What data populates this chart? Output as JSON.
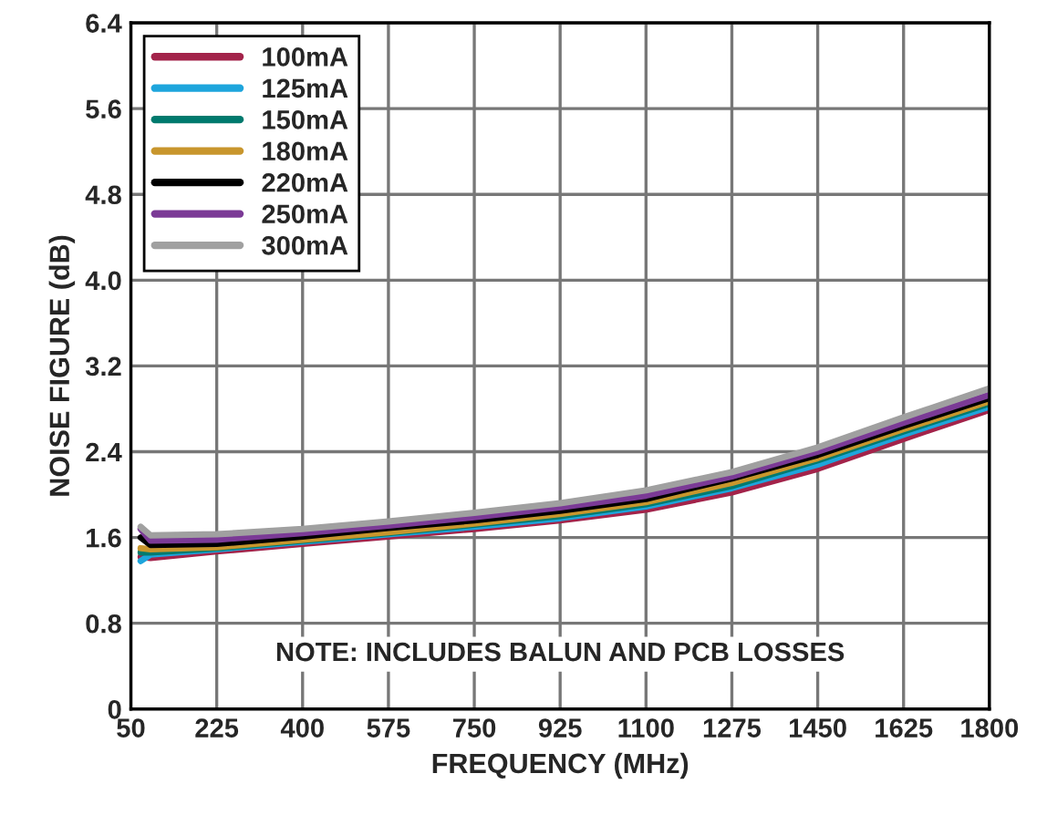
{
  "chart_data": {
    "type": "line",
    "xlabel": "FREQUENCY (MHz)",
    "ylabel": "NOISE FIGURE (dB)",
    "x": [
      70,
      90,
      225,
      400,
      575,
      750,
      925,
      1100,
      1275,
      1450,
      1625,
      1800
    ],
    "series": [
      {
        "name": "100mA",
        "color": "#a3234a",
        "values": [
          1.42,
          1.41,
          1.47,
          1.54,
          1.61,
          1.68,
          1.76,
          1.86,
          2.02,
          2.24,
          2.52,
          2.79
        ]
      },
      {
        "name": "125mA",
        "color": "#1ea5dc",
        "values": [
          1.38,
          1.44,
          1.49,
          1.56,
          1.63,
          1.7,
          1.78,
          1.89,
          2.06,
          2.28,
          2.56,
          2.82
        ]
      },
      {
        "name": "150mA",
        "color": "#007a6e",
        "values": [
          1.46,
          1.46,
          1.5,
          1.57,
          1.64,
          1.72,
          1.8,
          1.91,
          2.08,
          2.32,
          2.59,
          2.85
        ]
      },
      {
        "name": "180mA",
        "color": "#c8962d",
        "values": [
          1.5,
          1.49,
          1.51,
          1.58,
          1.65,
          1.73,
          1.82,
          1.93,
          2.11,
          2.34,
          2.61,
          2.87
        ]
      },
      {
        "name": "220mA",
        "color": "#000000",
        "values": [
          1.6,
          1.53,
          1.54,
          1.61,
          1.69,
          1.76,
          1.85,
          1.96,
          2.15,
          2.37,
          2.64,
          2.9
        ]
      },
      {
        "name": "250mA",
        "color": "#7b3a96",
        "values": [
          1.68,
          1.57,
          1.58,
          1.64,
          1.71,
          1.79,
          1.88,
          1.99,
          2.17,
          2.4,
          2.67,
          2.93
        ]
      },
      {
        "name": "300mA",
        "color": "#a0a0a0",
        "values": [
          1.7,
          1.62,
          1.63,
          1.68,
          1.75,
          1.83,
          1.92,
          2.04,
          2.21,
          2.44,
          2.72,
          2.99
        ]
      }
    ],
    "xlim": [
      50,
      1800
    ],
    "xticks": [
      50,
      225,
      400,
      575,
      750,
      925,
      1100,
      1275,
      1450,
      1625,
      1800
    ],
    "ylim": [
      0,
      6.4
    ],
    "yticks": [
      0,
      0.8,
      1.6,
      2.4,
      3.2,
      {
        "value": 4,
        "label": "4.0"
      },
      4.8,
      5.6,
      6.4
    ],
    "grid": true,
    "legend": "top left",
    "annotations": [
      {
        "text": "NOTE: INCLUDES BALUN AND PCB LOSSES"
      }
    ]
  }
}
